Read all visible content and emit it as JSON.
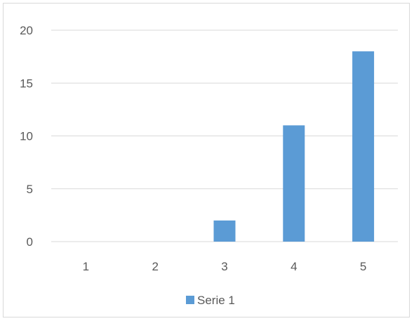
{
  "chart_data": {
    "type": "bar",
    "categories": [
      "1",
      "2",
      "3",
      "4",
      "5"
    ],
    "series": [
      {
        "name": "Serie 1",
        "values": [
          0,
          0,
          2,
          11,
          18
        ],
        "color": "#5b9bd5"
      }
    ],
    "title": "",
    "xlabel": "",
    "ylabel": "",
    "ylim": [
      0,
      20
    ],
    "yticks": [
      "0",
      "5",
      "10",
      "15",
      "20"
    ],
    "grid": true,
    "gridline_color": "#d9d9d9",
    "legend_position": "bottom"
  }
}
